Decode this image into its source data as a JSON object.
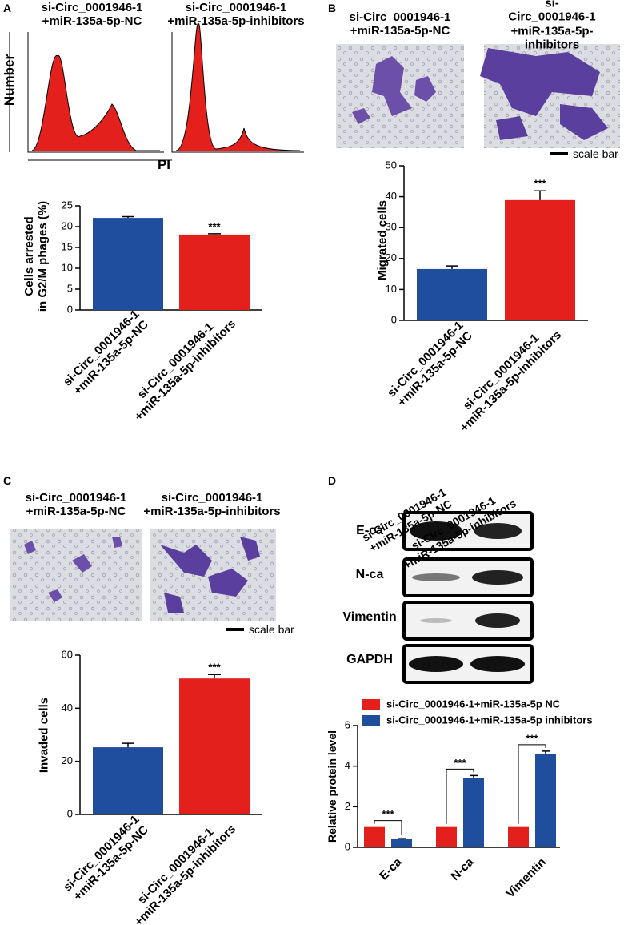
{
  "chart_data": [
    {
      "panel": "A",
      "type": "bar",
      "image_titles": [
        "si-Circ_0001946-1\n+miR-135a-5p-NC",
        "si-Circ_0001946-1\n+miR-135a-5p-inhibitors"
      ],
      "image_ylabel": "Number",
      "image_xlabel": "PI",
      "ylabel": "Cells arrested\nin G2/M phages (%)",
      "categories": [
        "si-Circ_0001946-1\n+miR-135a-5p-NC",
        "si-Circ_0001946-1\n+miR-135a-5p-inhibitors"
      ],
      "values": [
        22.1,
        18.1
      ],
      "errors": [
        0.3,
        0.2
      ],
      "colors": [
        "#1f4e9f",
        "#e3201b"
      ],
      "ylim": [
        0,
        25
      ],
      "yticks": [
        0,
        5,
        10,
        15,
        20,
        25
      ],
      "annotation": "***"
    },
    {
      "panel": "B",
      "type": "bar",
      "image_titles": [
        "si-Circ_0001946-1\n+miR-135a-5p-NC",
        "si-Circ_0001946-1\n+miR-135a-5p-inhibitors"
      ],
      "scale_bar": "scale bar",
      "ylabel": "Migrated cells",
      "categories": [
        "si-Circ_0001946-1\n+miR-135a-5p-NC",
        "si-Circ_0001946-1\n+miR-135a-5p-inhibitors"
      ],
      "values": [
        16.6,
        38.9
      ],
      "errors": [
        1.0,
        3.0
      ],
      "colors": [
        "#1f4e9f",
        "#e3201b"
      ],
      "ylim": [
        0,
        50
      ],
      "yticks": [
        0,
        10,
        20,
        30,
        40,
        50
      ],
      "annotation": "***"
    },
    {
      "panel": "C",
      "type": "bar",
      "image_titles": [
        "si-Circ_0001946-1\n+miR-135a-5p-NC",
        "si-Circ_0001946-1\n+miR-135a-5p-inhibitors"
      ],
      "scale_bar": "scale bar",
      "ylabel": "Invaded cells",
      "categories": [
        "si-Circ_0001946-1\n+miR-135a-5p-NC",
        "si-Circ_0001946-1\n+miR-135a-5p-inhibitors"
      ],
      "values": [
        25.3,
        51.2
      ],
      "errors": [
        1.5,
        1.5
      ],
      "colors": [
        "#1f4e9f",
        "#e3201b"
      ],
      "ylim": [
        0,
        60
      ],
      "yticks": [
        0,
        20,
        40,
        60
      ],
      "annotation": "***"
    },
    {
      "panel": "D",
      "type": "grouped_bar",
      "blot_columns": [
        "si-Circ_0001946-1\n+miR-135a-5p-NC",
        "si-Circ_0001946-1\n+miR-135a-5p-inhibitors"
      ],
      "blot_rows": [
        "E-ca",
        "N-ca",
        "Vimentin",
        "GAPDH"
      ],
      "ylabel": "Relative protein level",
      "categories": [
        "E-ca",
        "N-ca",
        "Vimentin"
      ],
      "series": [
        {
          "name": "si-Circ_0001946-1+miR-135a-5p NC",
          "color": "#e3201b",
          "values": [
            1,
            1,
            1
          ]
        },
        {
          "name": "si-Circ_0001946-1+miR-135a-5p inhibitors",
          "color": "#1f4e9f",
          "values": [
            0.4,
            3.42,
            4.62
          ],
          "errors": [
            0.03,
            0.12,
            0.12
          ]
        }
      ],
      "ylim": [
        0,
        6
      ],
      "yticks": [
        0,
        2,
        4,
        6
      ],
      "annotations": [
        "***",
        "***",
        "***"
      ]
    }
  ]
}
